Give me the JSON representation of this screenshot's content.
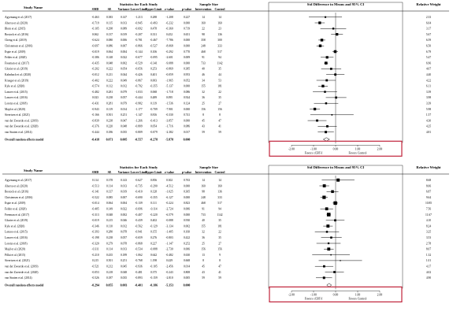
{
  "colors": {
    "highlight_box": "#c0233a",
    "marker": "#000000"
  },
  "forest_plots": [
    {
      "headers": {
        "study": "Study Name",
        "stats": "Statistics for Each Study",
        "sample": "Sample Size",
        "plot": "Std Difference in Means and 95% CI",
        "weight": "Relative Weight",
        "cols": [
          "SMD",
          "SE",
          "Variance",
          "Lower Limit",
          "Upper Limit",
          "z-value",
          "p-value",
          "Intervention",
          "Control"
        ]
      },
      "axis": {
        "ticks": [
          "-2.00",
          "-1.00",
          "0.00",
          "1.00",
          "2.00"
        ],
        "left_label": "Favors cCBT-I",
        "right_label": "Favors Control"
      },
      "rows": [
        {
          "study": "Agyemang et al. (2017)",
          "smd": "-0.463",
          "se": "0.383",
          "var": "0.147",
          "ll": "-1.213",
          "ul": "0.288",
          "z": "-1.208",
          "p": "0.227",
          "ni": "14",
          "nc": "14",
          "w": "2.33"
        },
        {
          "study": "Ahorsu et al. (2020)",
          "smd": "-0.719",
          "se": "0.115",
          "var": "0.013",
          "ll": "-0.945",
          "ul": "-0.493",
          "z": "-6.232",
          "p": "0.000",
          "ni": "160",
          "nc": "160",
          "w": "6.04"
        },
        {
          "study": "Blom et al. (2015)",
          "smd": "-0.105",
          "se": "0.298",
          "var": "0.089",
          "ll": "-0.692",
          "ul": "0.478",
          "z": "-0.360",
          "p": "0.719",
          "ni": "22",
          "nc": "23",
          "w": "3.17"
        },
        {
          "study": "Bostock et al. (2016)",
          "smd": "0.062",
          "se": "0.137",
          "var": "0.019",
          "ll": "-0.207",
          "ul": "0.331",
          "z": "0.452",
          "p": "0.651",
          "ni": "98",
          "nc": "136",
          "w": "5.67"
        },
        {
          "study": "Cheng et al. (2019)",
          "smd": "-0.624",
          "se": "0.080",
          "var": "0.006",
          "ll": "-0.781",
          "ul": "-0.467",
          "z": "-7.786",
          "p": "0.000",
          "ni": "358",
          "nc": "300",
          "w": "6.59"
        },
        {
          "study": "Christensen et al. (2016)",
          "smd": "-0.697",
          "se": "0.086",
          "var": "0.007",
          "ll": "-0.866",
          "ul": "-0.527",
          "z": "-8.068",
          "p": "0.000",
          "ni": "248",
          "nc": "333",
          "w": "6.50"
        },
        {
          "study": "Espie et al. (2019)",
          "smd": "-0.019",
          "se": "0.064",
          "var": "0.004",
          "ll": "-0.144",
          "ul": "0.106",
          "z": "-0.292",
          "p": "0.770",
          "ni": "468",
          "nc": "517",
          "w": "6.79"
        },
        {
          "study": "Felder et al. (2020)",
          "smd": "-0.386",
          "se": "0.148",
          "var": "0.022",
          "ll": "-0.677",
          "ul": "-0.095",
          "z": "-2.601",
          "p": "0.009",
          "ni": "91",
          "nc": "94",
          "w": "5.47"
        },
        {
          "study": "Freeman et al. (2017)",
          "smd": "-0.435",
          "se": "0.048",
          "var": "0.002",
          "ll": "-0.529",
          "ul": "-0.341",
          "z": "-9.088",
          "p": "0.000",
          "ni": "733",
          "nc": "1142",
          "w": "6.96"
        },
        {
          "study": "Glozier et al. (2019)",
          "smd": "-0.202",
          "se": "0.222",
          "var": "0.054",
          "ll": "-0.656",
          "ul": "0.253",
          "z": "-0.869",
          "p": "0.385",
          "ni": "40",
          "nc": "35",
          "w": "4.07"
        },
        {
          "study": "Kalmbach et al. (2020)",
          "smd": "-0.012",
          "se": "0.211",
          "var": "0.044",
          "ll": "-0.426",
          "ul": "0.401",
          "z": "-0.059",
          "p": "0.953",
          "ni": "46",
          "nc": "44",
          "w": "4.40"
        },
        {
          "study": "Krueger et al. (2019)",
          "smd": "-0.402",
          "se": "0.222",
          "var": "0.049",
          "ll": "-0.867",
          "ul": "0.003",
          "z": "-1.965",
          "p": "0.052",
          "ni": "34",
          "nc": "53",
          "w": "4.22"
        },
        {
          "study": "Kyle et al. (2020)",
          "smd": "-0.574",
          "se": "0.112",
          "var": "0.012",
          "ll": "-0.792",
          "ul": "-0.355",
          "z": "-5.137",
          "p": "0.000",
          "ni": "155",
          "nc": "181",
          "w": "6.11"
        },
        {
          "study": "Lancee et al. (2015)",
          "smd": "-0.482",
          "se": "0.281",
          "var": "0.079",
          "ll": "-1.033",
          "ul": "0.068",
          "z": "-1.718",
          "p": "0.086",
          "ni": "32",
          "nc": "22",
          "w": "3.39"
        },
        {
          "study": "Lancee et al. (2016)",
          "smd": "0.023",
          "se": "0.238",
          "var": "0.057",
          "ll": "-0.444",
          "ul": "0.489",
          "z": "0.095",
          "p": "0.924",
          "ni": "36",
          "nc": "35",
          "w": "3.98"
        },
        {
          "study": "Lorenz et al. (2018)",
          "smd": "-0.431",
          "se": "0.281",
          "var": "0.079",
          "ll": "-0.982",
          "ul": "0.119",
          "z": "-1.536",
          "p": "0.124",
          "ni": "25",
          "nc": "27",
          "w": "3.39"
        },
        {
          "study": "Majd et al. (2020)",
          "smd": "-0.943",
          "se": "0.119",
          "var": "0.014",
          "ll": "-1.177",
          "ul": "-0.709",
          "z": "-7.901",
          "p": "0.000",
          "ni": "156",
          "nc": "156",
          "w": "5.98"
        },
        {
          "study": "Sivertsen et al. (2021)",
          "smd": "-0.166",
          "se": "0.501",
          "var": "0.251",
          "ll": "-1.147",
          "ul": "0.816",
          "z": "-0.330",
          "p": "0.741",
          "ni": "8",
          "nc": "8",
          "w": "1.57"
        },
        {
          "study": "van der Zweerde et al. (2019)",
          "smd": "-0.839",
          "se": "0.238",
          "var": "0.047",
          "ll": "-1.266",
          "ul": "-0.413",
          "z": "-3.857",
          "p": "0.000",
          "ni": "45",
          "nc": "47",
          "w": "4.30"
        },
        {
          "study": "van der Zweerde et al. (2020)",
          "smd": "-0.376",
          "se": "0.220",
          "var": "0.048",
          "ll": "-0.809",
          "ul": "0.054",
          "z": "-1.716",
          "p": "0.086",
          "ni": "43",
          "nc": "41",
          "w": "4.25"
        },
        {
          "study": "van Straten et al. (2014)",
          "smd": "-0.444",
          "se": "0.186",
          "var": "0.035",
          "ll": "-0.809",
          "ul": "-0.079",
          "z": "-2.382",
          "p": "0.017",
          "ni": "59",
          "nc": "59",
          "w": "4.81"
        }
      ],
      "overall": {
        "study": "Overall random effects model",
        "smd": "-0.418",
        "se": "0.071",
        "var": "0.005",
        "ll": "-0.557",
        "ul": "-0.278",
        "z": "-5.878",
        "p": "0.000",
        "ni": "",
        "nc": "",
        "w": ""
      }
    },
    {
      "headers": {
        "study": "Study Name",
        "stats": "Statistics for Each Study",
        "sample": "Sample Size",
        "plot": "Std Difference in Means and 95% CI",
        "weight": "Relative Weight",
        "cols": [
          "SMD",
          "SE",
          "Variance",
          "Lower Limit",
          "Upper Limit",
          "z-value",
          "p-value",
          "Intervention",
          "Control"
        ]
      },
      "axis": {
        "ticks": [
          "-2.00",
          "-1.00",
          "0.00",
          "1.00",
          "2.00"
        ],
        "left_label": "Favors cCBT-I",
        "right_label": "Favors Control"
      },
      "rows": [
        {
          "study": "Agyemang et al. (2017)",
          "smd": "0.114",
          "se": "0.378",
          "var": "0.143",
          "ll": "-0.627",
          "ub": "",
          "ul": "0.856",
          "z": "0.302",
          "p": "0.763",
          "ni": "14",
          "nc": "14",
          "w": "8.68"
        },
        {
          "study": "Ahorsu et al. (2020)",
          "smd": "-0.513",
          "se": "0.114",
          "var": "0.013",
          "ll": "-0.735",
          "ul": "-0.290",
          "z": "-4.512",
          "p": "0.000",
          "ni": "160",
          "nc": "160",
          "w": "8.06"
        },
        {
          "study": "Bostock et al. (2016)",
          "smd": "-0.141",
          "se": "0.137",
          "var": "0.019",
          "ll": "-0.410",
          "ul": "0.128",
          "z": "-1.025",
          "p": "0.305",
          "ni": "98",
          "nc": "136",
          "w": "6.87"
        },
        {
          "study": "Christensen et al. (2016)",
          "smd": "-0.522",
          "se": "0.085",
          "var": "0.007",
          "ll": "-0.690",
          "ul": "-0.355",
          "z": "-6.127",
          "p": "0.000",
          "ni": "248",
          "nc": "333",
          "w": "9.64"
        },
        {
          "study": "Espie et al. (2019)",
          "smd": "-0.014",
          "se": "0.064",
          "var": "0.004",
          "ll": "-0.139",
          "ul": "0.111",
          "z": "-0.224",
          "p": "0.823",
          "ni": "468",
          "nc": "517",
          "w": "10.85"
        },
        {
          "study": "Felder et al. (2020)",
          "smd": "-0.405",
          "se": "0.149",
          "var": "0.022",
          "ll": "-0.696",
          "ul": "-0.114",
          "z": "-2.724",
          "p": "0.006",
          "ni": "91",
          "nc": "94",
          "w": "7.56"
        },
        {
          "study": "Freeman et al. (2017)",
          "smd": "-0.313",
          "se": "0.048",
          "var": "0.002",
          "ll": "-0.407",
          "ul": "-0.220",
          "z": "-6.579",
          "p": "0.000",
          "ni": "733",
          "nc": "1142",
          "w": "11.67"
        },
        {
          "study": "Glozier et al. (2019)",
          "smd": "-0.019",
          "se": "0.215",
          "var": "0.046",
          "ll": "-0.439",
          "ul": "0.402",
          "z": "-0.088",
          "p": "0.930",
          "ni": "40",
          "nc": "35",
          "w": "4.10"
        },
        {
          "study": "Kyle et al. (2020)",
          "smd": "-0.346",
          "se": "0.110",
          "var": "0.012",
          "ll": "-0.562",
          "ul": "-0.129",
          "z": "-3.134",
          "p": "0.002",
          "ni": "155",
          "nc": "181",
          "w": "8.24"
        },
        {
          "study": "Lancee et al. (2015)",
          "smd": "-0.393",
          "se": "0.280",
          "var": "0.078",
          "ll": "-0.941",
          "ul": "0.155",
          "z": "-1.405",
          "p": "0.160",
          "ni": "32",
          "nc": "22",
          "w": "3.25"
        },
        {
          "study": "Lancee et al. (2016)",
          "smd": "-0.198",
          "se": "0.238",
          "var": "0.057",
          "ll": "-0.659",
          "ul": "0.276",
          "z": "-0.803",
          "p": "0.422",
          "ni": "36",
          "nc": "35",
          "w": "3.53"
        },
        {
          "study": "Lorenz et al. (2018)",
          "smd": "-0.320",
          "se": "0.279",
          "var": "0.078",
          "ll": "-0.868",
          "ul": "0.227",
          "z": "-1.147",
          "p": "0.252",
          "ni": "25",
          "nc": "27",
          "w": "2.78"
        },
        {
          "study": "Majd et al. (2020)",
          "smd": "-0.311",
          "se": "0.114",
          "var": "0.013",
          "ll": "-0.534",
          "ul": "-0.088",
          "z": "-2.730",
          "p": "0.006",
          "ni": "156",
          "nc": "156",
          "w": "8.07"
        },
        {
          "study": "Pillai et al. (2015)",
          "smd": "-0.210",
          "se": "0.435",
          "var": "0.189",
          "ll": "-1.062",
          "ul": "0.642",
          "z": "-0.482",
          "p": "0.630",
          "ni": "13",
          "nc": "9",
          "w": "1.32"
        },
        {
          "study": "Sivertsen et al. (2021)",
          "smd": "0.215",
          "se": "0.501",
          "var": "0.251",
          "ll": "-0.768",
          "ul": "1.198",
          "z": "0.429",
          "p": "0.668",
          "ni": "8",
          "nc": "8",
          "w": "1.01"
        },
        {
          "study": "van der Zweerde et al. (2019)",
          "smd": "-0.521",
          "se": "0.212",
          "var": "0.045",
          "ll": "-0.936",
          "ul": "-0.105",
          "z": "-2.456",
          "p": "0.014",
          "ni": "45",
          "nc": "47",
          "w": "4.17"
        },
        {
          "study": "van der Zweerde et al. (2020)",
          "smd": "-0.053",
          "se": "0.218",
          "var": "0.048",
          "ll": "-0.481",
          "ul": "0.375",
          "z": "-0.243",
          "p": "0.808",
          "ni": "43",
          "nc": "41",
          "w": "4.02"
        },
        {
          "study": "van Straten et al. (2014)",
          "smd": "-0.526",
          "se": "0.187",
          "var": "0.035",
          "ll": "-0.893",
          "ul": "-0.159",
          "z": "-2.810",
          "p": "0.005",
          "ni": "59",
          "nc": "59",
          "w": "4.90"
        }
      ],
      "overall": {
        "study": "Overall random effects model",
        "smd": "-0.294",
        "se": "0.055",
        "var": "0.003",
        "ll": "-0.401",
        "ul": "-0.186",
        "z": "-5.353",
        "p": "0.000",
        "ni": "",
        "nc": "",
        "w": ""
      }
    }
  ]
}
